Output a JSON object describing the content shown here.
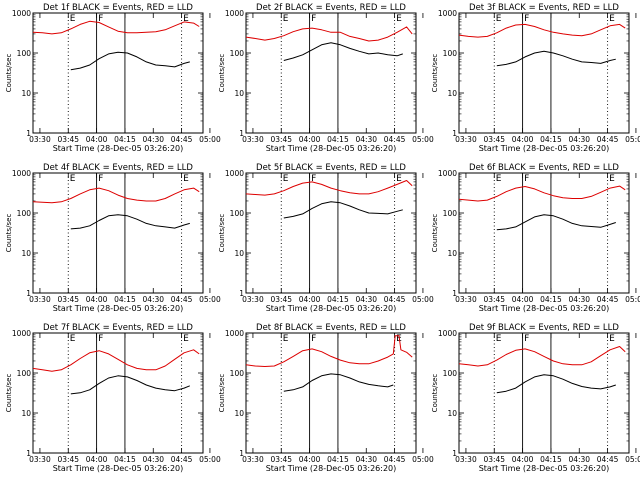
{
  "figure": {
    "title_template": "Det {det} BLACK = Events, RED = LLD",
    "series_legend": {
      "black": "Events",
      "red": "LLD"
    },
    "colors": {
      "events": "#000000",
      "lld": "#dd0000",
      "axis": "#000000",
      "background": "#ffffff"
    }
  },
  "chart_data": [
    {
      "type": "line",
      "title": "Det 1f BLACK = Events, RED = LLD",
      "xlabel": "Start Time (28-Dec-05 03:26:20)",
      "ylabel": "Counts/sec",
      "x_ticks": [
        "03:30",
        "03:45",
        "04:00",
        "04:15",
        "04:30",
        "04:45",
        "05:00"
      ],
      "y_ticks": [
        "1",
        "10",
        "100",
        "1000"
      ],
      "ylim": [
        1,
        1000
      ],
      "yscale": "log",
      "x_range_minutes": [
        0,
        90
      ],
      "markers": [
        "E",
        "F",
        "E"
      ],
      "series": [
        {
          "name": "LLD",
          "color": "#dd0000",
          "x": [
            0,
            5,
            10,
            15,
            20,
            25,
            30,
            35,
            40,
            45,
            50,
            55,
            60,
            65,
            70,
            75,
            80,
            85,
            88
          ],
          "values": [
            330,
            320,
            300,
            320,
            400,
            520,
            620,
            580,
            450,
            350,
            320,
            320,
            330,
            340,
            380,
            480,
            600,
            560,
            460
          ]
        },
        {
          "name": "Events",
          "color": "#000000",
          "x": [
            20,
            25,
            30,
            35,
            40,
            45,
            50,
            55,
            60,
            65,
            70,
            75,
            80,
            83
          ],
          "values": [
            38,
            42,
            50,
            72,
            95,
            105,
            100,
            80,
            60,
            50,
            48,
            45,
            55,
            60
          ]
        }
      ]
    },
    {
      "type": "line",
      "title": "Det 2f BLACK = Events, RED = LLD",
      "xlabel": "Start Time (28-Dec-05 03:26:20)",
      "ylabel": "Counts/sec",
      "x_ticks": [
        "03:30",
        "03:45",
        "04:00",
        "04:15",
        "04:30",
        "04:45",
        "05:00"
      ],
      "y_ticks": [
        "1",
        "10",
        "100",
        "1000"
      ],
      "ylim": [
        1,
        1000
      ],
      "yscale": "log",
      "x_range_minutes": [
        0,
        90
      ],
      "markers": [
        "E",
        "F",
        "E"
      ],
      "series": [
        {
          "name": "LLD",
          "color": "#dd0000",
          "x": [
            0,
            5,
            10,
            15,
            20,
            25,
            30,
            35,
            40,
            45,
            50,
            55,
            60,
            65,
            70,
            75,
            80,
            85,
            88
          ],
          "values": [
            250,
            230,
            210,
            230,
            270,
            340,
            400,
            420,
            380,
            330,
            330,
            260,
            230,
            200,
            210,
            250,
            330,
            450,
            300
          ]
        },
        {
          "name": "Events",
          "color": "#000000",
          "x": [
            20,
            25,
            30,
            35,
            40,
            45,
            50,
            55,
            60,
            65,
            70,
            75,
            80,
            83
          ],
          "values": [
            65,
            75,
            90,
            120,
            160,
            180,
            160,
            130,
            110,
            95,
            100,
            90,
            85,
            95
          ]
        }
      ]
    },
    {
      "type": "line",
      "title": "Det 3f BLACK = Events, RED = LLD",
      "xlabel": "Start Time (28-Dec-05 03:26:20)",
      "ylabel": "Counts/sec",
      "x_ticks": [
        "03:30",
        "03:45",
        "04:00",
        "04:15",
        "04:30",
        "04:45",
        "05:00"
      ],
      "y_ticks": [
        "1",
        "10",
        "100",
        "1000"
      ],
      "ylim": [
        1,
        1000
      ],
      "yscale": "log",
      "x_range_minutes": [
        0,
        90
      ],
      "markers": [
        "E",
        "F",
        "E"
      ],
      "series": [
        {
          "name": "LLD",
          "color": "#dd0000",
          "x": [
            0,
            5,
            10,
            15,
            20,
            25,
            30,
            35,
            40,
            45,
            50,
            55,
            60,
            65,
            70,
            75,
            80,
            85,
            88
          ],
          "values": [
            280,
            260,
            250,
            260,
            320,
            420,
            500,
            520,
            460,
            380,
            330,
            300,
            280,
            270,
            300,
            380,
            480,
            520,
            420
          ]
        },
        {
          "name": "Events",
          "color": "#000000",
          "x": [
            20,
            25,
            30,
            35,
            40,
            45,
            50,
            55,
            60,
            65,
            70,
            75,
            80,
            83
          ],
          "values": [
            48,
            52,
            60,
            80,
            100,
            110,
            100,
            85,
            70,
            60,
            58,
            55,
            65,
            70
          ]
        }
      ]
    },
    {
      "type": "line",
      "title": "Det 4f BLACK = Events, RED = LLD",
      "xlabel": "Start Time (28-Dec-05 03:26:20)",
      "ylabel": "Counts/sec",
      "x_ticks": [
        "03:30",
        "03:45",
        "04:00",
        "04:15",
        "04:30",
        "04:45",
        "05:00"
      ],
      "y_ticks": [
        "1",
        "10",
        "100",
        "1000"
      ],
      "ylim": [
        1,
        1000
      ],
      "yscale": "log",
      "x_range_minutes": [
        0,
        90
      ],
      "markers": [
        "E",
        "F",
        "E"
      ],
      "series": [
        {
          "name": "LLD",
          "color": "#dd0000",
          "x": [
            0,
            5,
            10,
            15,
            20,
            25,
            30,
            35,
            40,
            45,
            50,
            55,
            60,
            65,
            70,
            75,
            80,
            85,
            88
          ],
          "values": [
            190,
            185,
            180,
            190,
            230,
            300,
            380,
            420,
            360,
            280,
            230,
            210,
            200,
            200,
            230,
            300,
            380,
            420,
            340
          ]
        },
        {
          "name": "Events",
          "color": "#000000",
          "x": [
            20,
            25,
            30,
            35,
            40,
            45,
            50,
            55,
            60,
            65,
            70,
            75,
            80,
            83
          ],
          "values": [
            40,
            42,
            48,
            65,
            85,
            90,
            85,
            70,
            55,
            48,
            45,
            42,
            50,
            55
          ]
        }
      ]
    },
    {
      "type": "line",
      "title": "Det 5f BLACK = Events, RED = LLD",
      "xlabel": "Start Time (28-Dec-05 03:26:20)",
      "ylabel": "Counts/sec",
      "x_ticks": [
        "03:30",
        "03:45",
        "04:00",
        "04:15",
        "04:30",
        "04:45",
        "05:00"
      ],
      "y_ticks": [
        "1",
        "10",
        "100",
        "1000"
      ],
      "ylim": [
        1,
        1000
      ],
      "yscale": "log",
      "x_range_minutes": [
        0,
        90
      ],
      "markers": [
        "E",
        "F",
        "E"
      ],
      "series": [
        {
          "name": "LLD",
          "color": "#dd0000",
          "x": [
            0,
            5,
            10,
            15,
            20,
            25,
            30,
            35,
            40,
            45,
            50,
            55,
            60,
            65,
            70,
            75,
            80,
            85,
            88
          ],
          "values": [
            300,
            290,
            280,
            300,
            360,
            460,
            560,
            600,
            520,
            420,
            360,
            320,
            300,
            300,
            340,
            420,
            520,
            650,
            480
          ]
        },
        {
          "name": "Events",
          "color": "#000000",
          "x": [
            20,
            25,
            30,
            35,
            40,
            45,
            50,
            55,
            60,
            65,
            70,
            75,
            80,
            83
          ],
          "values": [
            75,
            82,
            95,
            130,
            170,
            190,
            180,
            150,
            120,
            100,
            98,
            95,
            110,
            120
          ]
        }
      ]
    },
    {
      "type": "line",
      "title": "Det 6f BLACK = Events, RED = LLD",
      "xlabel": "Start Time (28-Dec-05 03:26:20)",
      "ylabel": "Counts/sec",
      "x_ticks": [
        "03:30",
        "03:45",
        "04:00",
        "04:15",
        "04:30",
        "04:45",
        "05:00"
      ],
      "y_ticks": [
        "1",
        "10",
        "100",
        "1000"
      ],
      "ylim": [
        1,
        1000
      ],
      "yscale": "log",
      "x_range_minutes": [
        0,
        90
      ],
      "markers": [
        "E",
        "F",
        "E"
      ],
      "series": [
        {
          "name": "LLD",
          "color": "#dd0000",
          "x": [
            0,
            5,
            10,
            15,
            20,
            25,
            30,
            35,
            40,
            45,
            50,
            55,
            60,
            65,
            70,
            75,
            80,
            85,
            88
          ],
          "values": [
            220,
            210,
            200,
            210,
            260,
            340,
            420,
            460,
            400,
            320,
            270,
            240,
            230,
            230,
            260,
            330,
            420,
            470,
            380
          ]
        },
        {
          "name": "Events",
          "color": "#000000",
          "x": [
            20,
            25,
            30,
            35,
            40,
            45,
            50,
            55,
            60,
            65,
            70,
            75,
            80,
            83
          ],
          "values": [
            38,
            40,
            45,
            60,
            80,
            90,
            85,
            70,
            55,
            48,
            46,
            44,
            52,
            58
          ]
        }
      ]
    },
    {
      "type": "line",
      "title": "Det 7f BLACK = Events, RED = LLD",
      "xlabel": "Start Time (28-Dec-05 03:26:20)",
      "ylabel": "Counts/sec",
      "x_ticks": [
        "03:30",
        "03:45",
        "04:00",
        "04:15",
        "04:30",
        "04:45",
        "05:00"
      ],
      "y_ticks": [
        "1",
        "10",
        "100",
        "1000"
      ],
      "ylim": [
        1,
        1000
      ],
      "yscale": "log",
      "x_range_minutes": [
        0,
        90
      ],
      "markers": [
        "E",
        "F",
        "E"
      ],
      "series": [
        {
          "name": "LLD",
          "color": "#dd0000",
          "x": [
            0,
            5,
            10,
            15,
            20,
            25,
            30,
            35,
            40,
            45,
            50,
            55,
            60,
            65,
            70,
            75,
            80,
            85,
            88
          ],
          "values": [
            130,
            120,
            110,
            120,
            160,
            230,
            320,
            360,
            300,
            220,
            160,
            130,
            120,
            120,
            150,
            220,
            320,
            380,
            300
          ]
        },
        {
          "name": "Events",
          "color": "#000000",
          "x": [
            20,
            25,
            30,
            35,
            40,
            45,
            50,
            55,
            60,
            65,
            70,
            75,
            80,
            83
          ],
          "values": [
            30,
            32,
            38,
            55,
            75,
            85,
            80,
            65,
            50,
            42,
            38,
            36,
            42,
            48
          ]
        }
      ]
    },
    {
      "type": "line",
      "title": "Det 8f BLACK = Events, RED = LLD",
      "xlabel": "Start Time (28-Dec-05 03:26:20)",
      "ylabel": "Counts/sec",
      "x_ticks": [
        "03:30",
        "03:45",
        "04:00",
        "04:15",
        "04:30",
        "04:45",
        "05:00"
      ],
      "y_ticks": [
        "1",
        "10",
        "100",
        "1000"
      ],
      "ylim": [
        1,
        1000
      ],
      "yscale": "log",
      "x_range_minutes": [
        0,
        90
      ],
      "markers": [
        "E",
        "F",
        "E"
      ],
      "series": [
        {
          "name": "LLD",
          "color": "#dd0000",
          "x": [
            0,
            5,
            10,
            15,
            20,
            25,
            30,
            35,
            40,
            45,
            50,
            55,
            60,
            65,
            70,
            75,
            78,
            79,
            80,
            81,
            82,
            85,
            88
          ],
          "values": [
            160,
            150,
            145,
            150,
            190,
            260,
            360,
            400,
            340,
            260,
            210,
            180,
            170,
            170,
            200,
            250,
            300,
            850,
            850,
            850,
            380,
            330,
            250
          ]
        },
        {
          "name": "Events",
          "color": "#000000",
          "x": [
            20,
            25,
            30,
            35,
            40,
            45,
            50,
            55,
            60,
            65,
            70,
            75,
            78
          ],
          "values": [
            35,
            38,
            45,
            65,
            85,
            95,
            90,
            75,
            60,
            52,
            48,
            45,
            50
          ]
        }
      ]
    },
    {
      "type": "line",
      "title": "Det 9f BLACK = Events, RED = LLD",
      "xlabel": "Start Time (28-Dec-05 03:26:20)",
      "ylabel": "Counts/sec",
      "x_ticks": [
        "03:30",
        "03:45",
        "04:00",
        "04:15",
        "04:30",
        "04:45",
        "05:00"
      ],
      "y_ticks": [
        "1",
        "10",
        "100",
        "1000"
      ],
      "ylim": [
        1,
        1000
      ],
      "yscale": "log",
      "x_range_minutes": [
        0,
        90
      ],
      "markers": [
        "E",
        "F",
        "E"
      ],
      "series": [
        {
          "name": "LLD",
          "color": "#dd0000",
          "x": [
            0,
            5,
            10,
            15,
            20,
            25,
            30,
            35,
            40,
            45,
            50,
            55,
            60,
            65,
            70,
            75,
            80,
            85,
            88
          ],
          "values": [
            170,
            160,
            150,
            160,
            210,
            290,
            370,
            400,
            340,
            260,
            200,
            170,
            160,
            160,
            190,
            270,
            380,
            460,
            340
          ]
        },
        {
          "name": "Events",
          "color": "#000000",
          "x": [
            20,
            25,
            30,
            35,
            40,
            45,
            50,
            55,
            60,
            65,
            70,
            75,
            80,
            83
          ],
          "values": [
            32,
            35,
            42,
            60,
            80,
            90,
            85,
            70,
            55,
            46,
            42,
            40,
            45,
            50
          ]
        }
      ]
    }
  ]
}
